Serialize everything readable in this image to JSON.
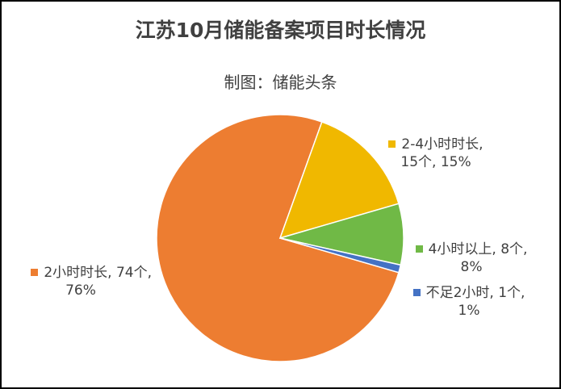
{
  "chart_data": {
    "type": "pie",
    "title": "江苏10月储能备案项目时长情况",
    "subtitle": "制图：储能头条",
    "slices": [
      {
        "category": "2小时时长",
        "count_text": "74个",
        "percent_text": "76%",
        "value": 76,
        "color": "#ED7D31",
        "label_line1": "2小时时长, 74个,",
        "label_line2": "76%"
      },
      {
        "category": "2-4小时时长",
        "count_text": "15个",
        "percent_text": "15%",
        "value": 15,
        "color": "#F0B800",
        "label_line1": "2-4小时时长,",
        "label_line2": "15个, 15%"
      },
      {
        "category": "4小时以上",
        "count_text": "8个",
        "percent_text": "8%",
        "value": 8,
        "color": "#70B946",
        "label_line1": "4小时以上, 8个,",
        "label_line2": "8%"
      },
      {
        "category": "不足2小时",
        "count_text": "1个",
        "percent_text": "1%",
        "value": 1,
        "color": "#4472C4",
        "label_line1": "不足2小时, 1个,",
        "label_line2": "1%"
      }
    ]
  }
}
